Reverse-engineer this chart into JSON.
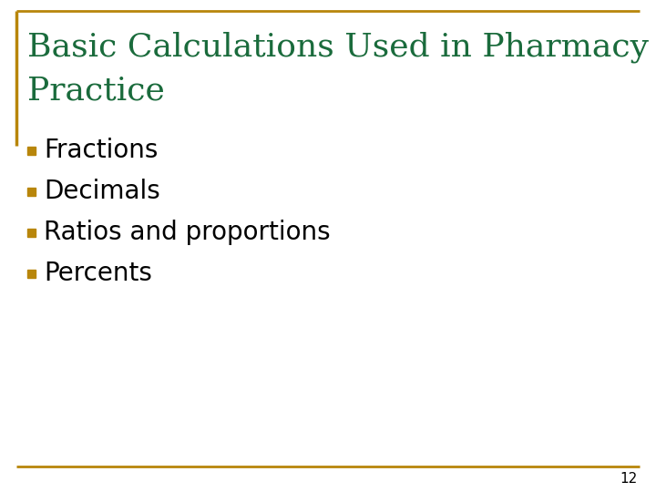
{
  "title_line1": "Basic Calculations Used in Pharmacy",
  "title_line2": "Practice",
  "title_color": "#1a6b3c",
  "bullet_items": [
    "Fractions",
    "Decimals",
    "Ratios and proportions",
    "Percents"
  ],
  "bullet_color": "#b8860b",
  "bullet_text_color": "#000000",
  "background_color": "#ffffff",
  "border_color": "#b8860b",
  "page_number": "12",
  "title_fontsize": 26,
  "bullet_fontsize": 20,
  "page_num_fontsize": 11
}
